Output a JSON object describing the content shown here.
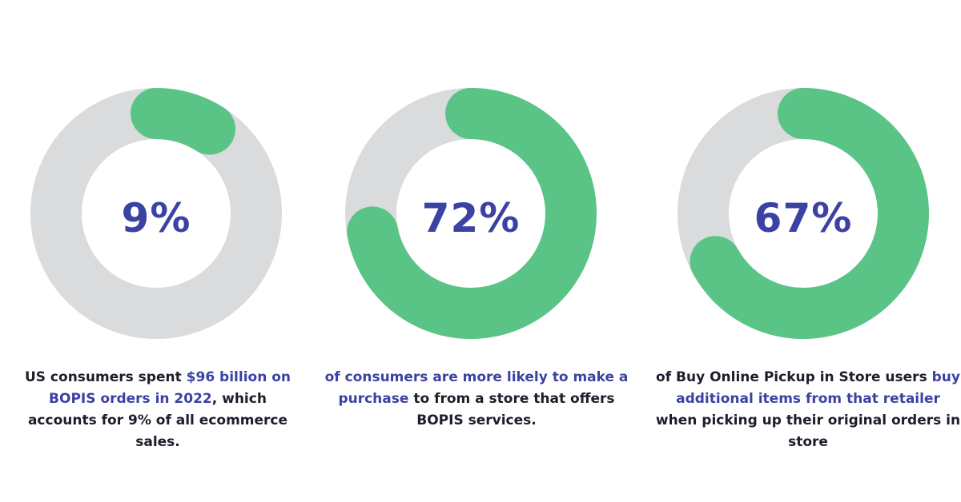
{
  "colors": {
    "track": "#dadbdd",
    "fill": "#5ac486",
    "accent": "#3b42a3",
    "text": "#1d1d2b"
  },
  "chart_data": [
    {
      "type": "pie",
      "value": 9,
      "label": "9%",
      "caption": {
        "pre": "US consumers spent ",
        "highlight": "$96 billion on BOPIS orders in 2022",
        "post": ", which accounts for 9% of all ecommerce sales."
      }
    },
    {
      "type": "pie",
      "value": 72,
      "label": "72%",
      "caption": {
        "pre": "",
        "highlight": "of consumers are more likely to make a purchase",
        "post": " to from a store that offers BOPIS services."
      }
    },
    {
      "type": "pie",
      "value": 67,
      "label": "67%",
      "caption": {
        "pre": "of Buy Online Pickup in Store users ",
        "highlight": "buy additional items from that retailer",
        "post": " when picking up their original orders in store"
      }
    }
  ]
}
